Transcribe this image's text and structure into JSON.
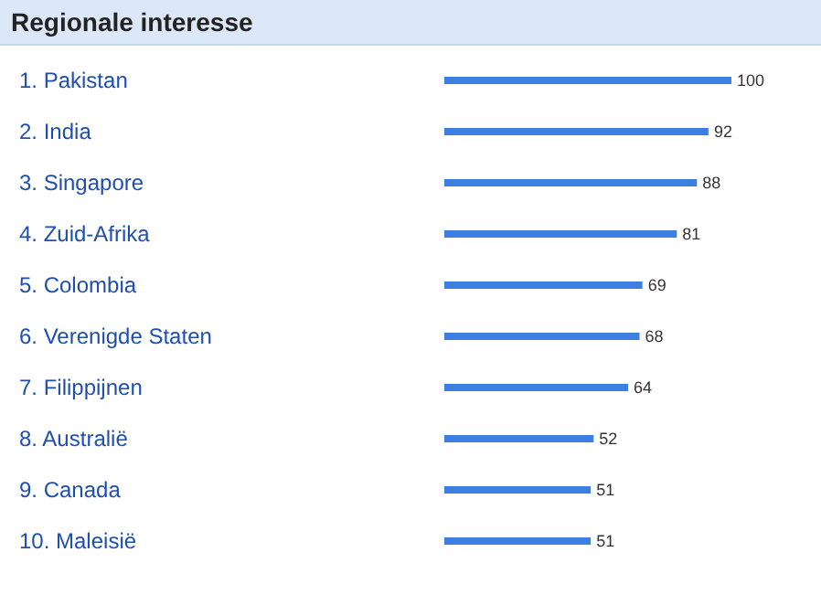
{
  "chart_data": {
    "type": "bar",
    "orientation": "horizontal",
    "title": "Regionale interesse",
    "categories": [
      "1.  Pakistan",
      "2.  India",
      "3.  Singapore",
      "4.  Zuid-Afrika",
      "5.  Colombia",
      "6.  Verenigde Staten",
      "7.  Filippijnen",
      "8.  Australië",
      "9.  Canada",
      "10.  Maleisië"
    ],
    "values": [
      100,
      92,
      88,
      81,
      69,
      68,
      64,
      52,
      51,
      51
    ],
    "color": "#3d7fe0",
    "data_labels": true
  }
}
